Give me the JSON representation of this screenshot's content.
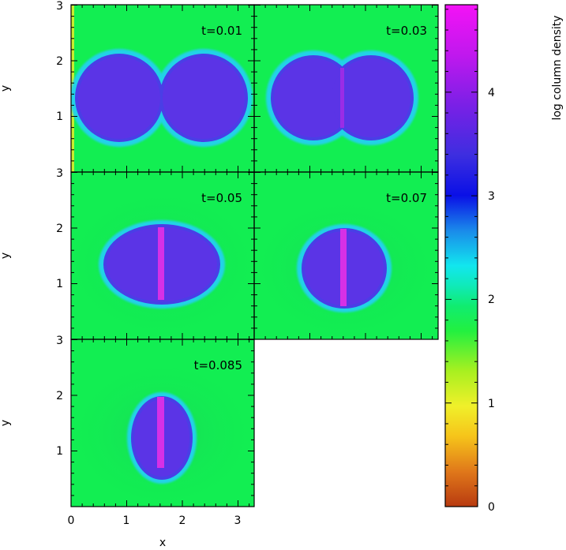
{
  "panels": [
    {
      "time": "t=0.01"
    },
    {
      "time": "t=0.03"
    },
    {
      "time": "t=0.05"
    },
    {
      "time": "t=0.07"
    },
    {
      "time": "t=0.085"
    }
  ],
  "x_axis": {
    "label": "x",
    "ticks": [
      "0",
      "1",
      "2",
      "3"
    ]
  },
  "y_axis": {
    "label": "y",
    "ticks": [
      "1",
      "2",
      "3"
    ]
  },
  "colorbar": {
    "label": "log column density",
    "ticks": [
      "0",
      "1",
      "2",
      "3",
      "4"
    ]
  },
  "colors": {
    "background_field": "#12ee52",
    "clump": "#5b34e6",
    "filament": "#d630e6",
    "edge": "#24d2e8"
  }
}
